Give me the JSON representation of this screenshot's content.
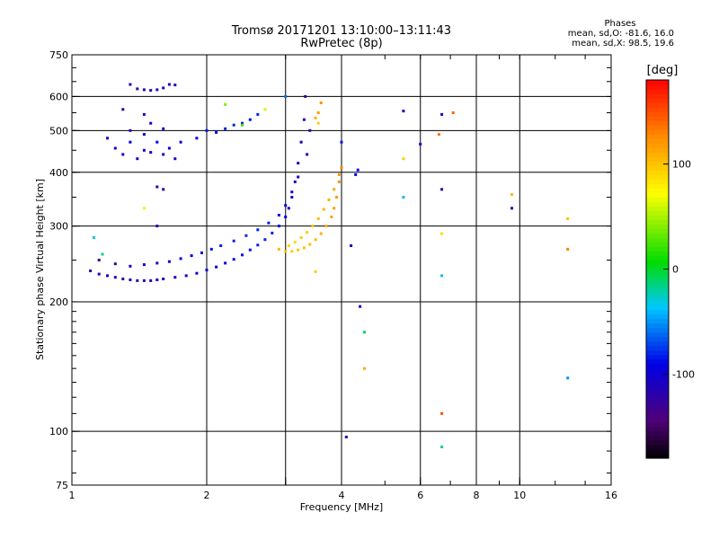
{
  "header": {
    "title": "Tromsø 20171201 13:10:00–13:11:43",
    "subtitle": "RwPretec (8p)"
  },
  "phases": {
    "title": "Phases",
    "o_line": "mean, sd,O: -81.6, 16.0",
    "x_line": "mean, sd,X:  98.5, 19.6"
  },
  "colorbar": {
    "label": "[deg]",
    "ticks": [
      {
        "value": 100,
        "label": "100"
      },
      {
        "value": 0,
        "label": "0"
      },
      {
        "value": -100,
        "label": "-100"
      }
    ],
    "range": [
      -180,
      180
    ]
  },
  "chart_data": {
    "type": "scatter",
    "title": "Tromsø 20171201 13:10:00–13:11:43",
    "subtitle": "RwPretec (8p)",
    "xlabel": "Frequency [MHz]",
    "ylabel": "Stationary phase Virtual Height [km]",
    "x_scale": "log",
    "y_scale": "log",
    "xlim": [
      1,
      16
    ],
    "ylim": [
      75,
      750
    ],
    "x_ticks": [
      {
        "value": 1,
        "label": "1",
        "grid": false
      },
      {
        "value": 2,
        "label": "2",
        "grid": true
      },
      {
        "value": 3,
        "label": "",
        "grid": true
      },
      {
        "value": 4,
        "label": "4",
        "grid": true
      },
      {
        "value": 6,
        "label": "6",
        "grid": true
      },
      {
        "value": 8,
        "label": "8",
        "grid": true
      },
      {
        "value": 10,
        "label": "10",
        "grid": true
      },
      {
        "value": 16,
        "label": "16",
        "grid": false
      }
    ],
    "y_ticks": [
      {
        "value": 75,
        "label": "75",
        "grid": false
      },
      {
        "value": 100,
        "label": "100",
        "grid": true
      },
      {
        "value": 200,
        "label": "200",
        "grid": true
      },
      {
        "value": 300,
        "label": "300",
        "grid": true
      },
      {
        "value": 400,
        "label": "400",
        "grid": true
      },
      {
        "value": 500,
        "label": "500",
        "grid": true
      },
      {
        "value": 600,
        "label": "600",
        "grid": true
      },
      {
        "value": 750,
        "label": "750",
        "grid": false
      }
    ],
    "series": [
      {
        "mode": "O",
        "points": [
          [
            1.1,
            236,
            -120
          ],
          [
            1.15,
            232,
            -110
          ],
          [
            1.2,
            230,
            -105
          ],
          [
            1.25,
            228,
            -115
          ],
          [
            1.3,
            226,
            -120
          ],
          [
            1.35,
            225,
            -118
          ],
          [
            1.4,
            224,
            -122
          ],
          [
            1.45,
            224,
            -115
          ],
          [
            1.5,
            224,
            -110
          ],
          [
            1.55,
            225,
            -108
          ],
          [
            1.6,
            226,
            -112
          ],
          [
            1.7,
            228,
            -105
          ],
          [
            1.8,
            230,
            -100
          ],
          [
            1.9,
            233,
            -98
          ],
          [
            2.0,
            237,
            -95
          ],
          [
            2.1,
            241,
            -92
          ],
          [
            2.2,
            246,
            -90
          ],
          [
            2.3,
            251,
            -88
          ],
          [
            2.4,
            257,
            -86
          ],
          [
            2.5,
            264,
            -84
          ],
          [
            2.6,
            271,
            -82
          ],
          [
            2.7,
            279,
            -80
          ],
          [
            2.8,
            289,
            -82
          ],
          [
            2.9,
            300,
            -85
          ],
          [
            3.0,
            315,
            -90
          ],
          [
            3.05,
            330,
            -95
          ],
          [
            3.1,
            350,
            -100
          ],
          [
            3.15,
            380,
            -105
          ],
          [
            3.2,
            420,
            -110
          ],
          [
            3.25,
            470,
            -115
          ],
          [
            3.3,
            530,
            -120
          ],
          [
            3.32,
            600,
            -125
          ],
          [
            1.15,
            250,
            -130
          ],
          [
            1.25,
            245,
            -125
          ],
          [
            1.35,
            242,
            -100
          ],
          [
            1.45,
            244,
            -105
          ],
          [
            1.55,
            246,
            -115
          ],
          [
            1.65,
            248,
            -95
          ],
          [
            1.75,
            252,
            -90
          ],
          [
            1.85,
            256,
            -92
          ],
          [
            1.95,
            260,
            -88
          ],
          [
            2.05,
            265,
            -85
          ],
          [
            2.15,
            270,
            -82
          ],
          [
            2.3,
            277,
            -80
          ],
          [
            2.45,
            285,
            -78
          ],
          [
            2.6,
            294,
            -80
          ],
          [
            2.75,
            305,
            -82
          ],
          [
            2.9,
            318,
            -86
          ],
          [
            3.0,
            335,
            -92
          ],
          [
            3.1,
            360,
            -98
          ],
          [
            3.2,
            390,
            -104
          ],
          [
            3.35,
            440,
            -110
          ],
          [
            3.4,
            500,
            -112
          ],
          [
            1.2,
            480,
            -105
          ],
          [
            1.25,
            455,
            -110
          ],
          [
            1.3,
            440,
            -100
          ],
          [
            1.35,
            470,
            -95
          ],
          [
            1.4,
            430,
            -108
          ],
          [
            1.45,
            450,
            -112
          ],
          [
            1.5,
            445,
            -100
          ],
          [
            1.55,
            470,
            -90
          ],
          [
            1.6,
            440,
            -105
          ],
          [
            1.65,
            455,
            -98
          ],
          [
            1.7,
            430,
            -110
          ],
          [
            1.35,
            500,
            -115
          ],
          [
            1.45,
            490,
            -108
          ],
          [
            1.5,
            520,
            -100
          ],
          [
            1.3,
            560,
            -118
          ],
          [
            1.45,
            545,
            -112
          ],
          [
            1.6,
            505,
            -105
          ],
          [
            1.75,
            470,
            -95
          ],
          [
            1.9,
            480,
            -90
          ],
          [
            2.0,
            500,
            -85
          ],
          [
            2.1,
            495,
            -88
          ],
          [
            2.2,
            505,
            -82
          ],
          [
            2.3,
            515,
            -80
          ],
          [
            2.4,
            520,
            -84
          ],
          [
            2.5,
            530,
            -86
          ],
          [
            2.6,
            545,
            -80
          ],
          [
            1.35,
            640,
            -120
          ],
          [
            1.4,
            625,
            -125
          ],
          [
            1.45,
            622,
            -118
          ],
          [
            1.5,
            620,
            -122
          ],
          [
            1.55,
            622,
            -115
          ],
          [
            1.6,
            628,
            -110
          ],
          [
            1.65,
            640,
            -105
          ],
          [
            1.7,
            638,
            -112
          ],
          [
            1.55,
            370,
            -118
          ],
          [
            1.6,
            365,
            -112
          ],
          [
            1.55,
            300,
            -110
          ],
          [
            4.0,
            470,
            -85
          ],
          [
            4.3,
            395,
            -90
          ],
          [
            4.35,
            405,
            -88
          ],
          [
            6.0,
            465,
            -100
          ],
          [
            6.7,
            545,
            -110
          ],
          [
            6.7,
            365,
            -120
          ],
          [
            9.6,
            330,
            -115
          ],
          [
            4.2,
            270,
            -95
          ],
          [
            4.4,
            195,
            -105
          ],
          [
            4.1,
            97,
            -110
          ]
        ]
      },
      {
        "mode": "X",
        "points": [
          [
            2.9,
            265,
            105
          ],
          [
            3.0,
            262,
            100
          ],
          [
            3.1,
            262,
            95
          ],
          [
            3.2,
            264,
            98
          ],
          [
            3.3,
            267,
            100
          ],
          [
            3.4,
            272,
            102
          ],
          [
            3.5,
            279,
            105
          ],
          [
            3.6,
            288,
            108
          ],
          [
            3.7,
            300,
            110
          ],
          [
            3.8,
            315,
            115
          ],
          [
            3.85,
            330,
            118
          ],
          [
            3.9,
            350,
            120
          ],
          [
            3.95,
            380,
            125
          ],
          [
            4.0,
            410,
            130
          ],
          [
            3.05,
            270,
            92
          ],
          [
            3.15,
            275,
            88
          ],
          [
            3.25,
            282,
            95
          ],
          [
            3.35,
            290,
            97
          ],
          [
            3.45,
            300,
            100
          ],
          [
            3.55,
            312,
            103
          ],
          [
            3.65,
            328,
            106
          ],
          [
            3.75,
            345,
            110
          ],
          [
            3.85,
            365,
            114
          ],
          [
            3.95,
            395,
            122
          ],
          [
            3.5,
            535,
            112
          ],
          [
            3.55,
            550,
            118
          ],
          [
            3.6,
            580,
            125
          ],
          [
            3.55,
            520,
            95
          ],
          [
            3.5,
            235,
            95
          ],
          [
            4.5,
            140,
            110
          ],
          [
            5.5,
            430,
            95
          ],
          [
            5.5,
            555,
            -110
          ],
          [
            6.6,
            490,
            135
          ],
          [
            7.1,
            550,
            140
          ],
          [
            6.7,
            288,
            90
          ],
          [
            9.6,
            355,
            105
          ],
          [
            12.8,
            265,
            130
          ],
          [
            12.8,
            312,
            100
          ],
          [
            6.7,
            110,
            150
          ]
        ]
      },
      {
        "mode": "stray",
        "points": [
          [
            1.12,
            282,
            -30
          ],
          [
            1.17,
            258,
            -20
          ],
          [
            1.45,
            330,
            80
          ],
          [
            2.2,
            575,
            40
          ],
          [
            2.4,
            515,
            20
          ],
          [
            2.7,
            560,
            60
          ],
          [
            3.0,
            600,
            -60
          ],
          [
            5.5,
            350,
            -40
          ],
          [
            6.7,
            92,
            -20
          ],
          [
            12.8,
            133,
            -50
          ],
          [
            4.5,
            170,
            -10
          ],
          [
            6.7,
            230,
            -40
          ]
        ]
      }
    ]
  }
}
